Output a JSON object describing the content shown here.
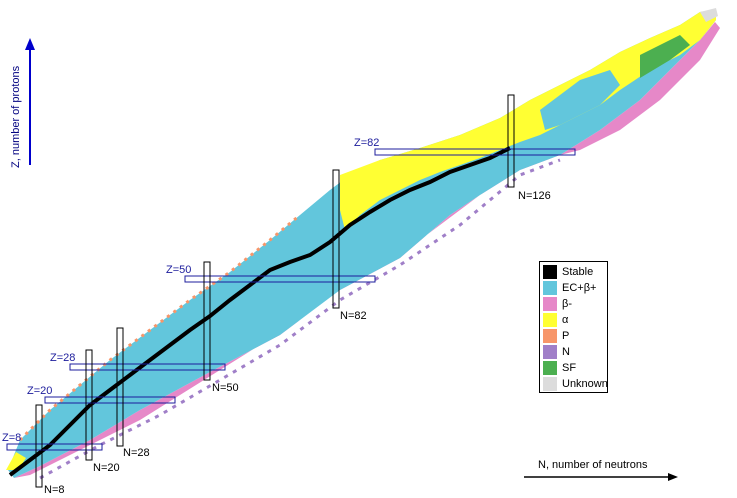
{
  "axes": {
    "z_label": "Z, number of protons",
    "n_label": "N, number of neutrons"
  },
  "colors": {
    "stable": "#000000",
    "ec": "#62c6dc",
    "beta_minus": "#e688c8",
    "alpha": "#ffff33",
    "p": "#f7966a",
    "n": "#a07fc8",
    "sf": "#4caf50",
    "unknown": "#dcdcdc",
    "magic_box": "#1c1c9c",
    "axis_arrow": "#0000cc"
  },
  "magic_numbers": {
    "z": [
      "Z=8",
      "Z=20",
      "Z=28",
      "Z=50",
      "Z=82"
    ],
    "n": [
      "N=8",
      "N=20",
      "N=28",
      "N=50",
      "N=82",
      "N=126"
    ]
  },
  "legend": [
    {
      "label": "Stable",
      "color": "#000000"
    },
    {
      "label": "EC+β+",
      "color": "#62c6dc"
    },
    {
      "label": "β-",
      "color": "#e688c8"
    },
    {
      "label": "α",
      "color": "#ffff33"
    },
    {
      "label": "P",
      "color": "#f7966a"
    },
    {
      "label": "N",
      "color": "#a07fc8"
    },
    {
      "label": "SF",
      "color": "#4caf50"
    },
    {
      "label": "Unknown",
      "color": "#dcdcdc"
    }
  ]
}
